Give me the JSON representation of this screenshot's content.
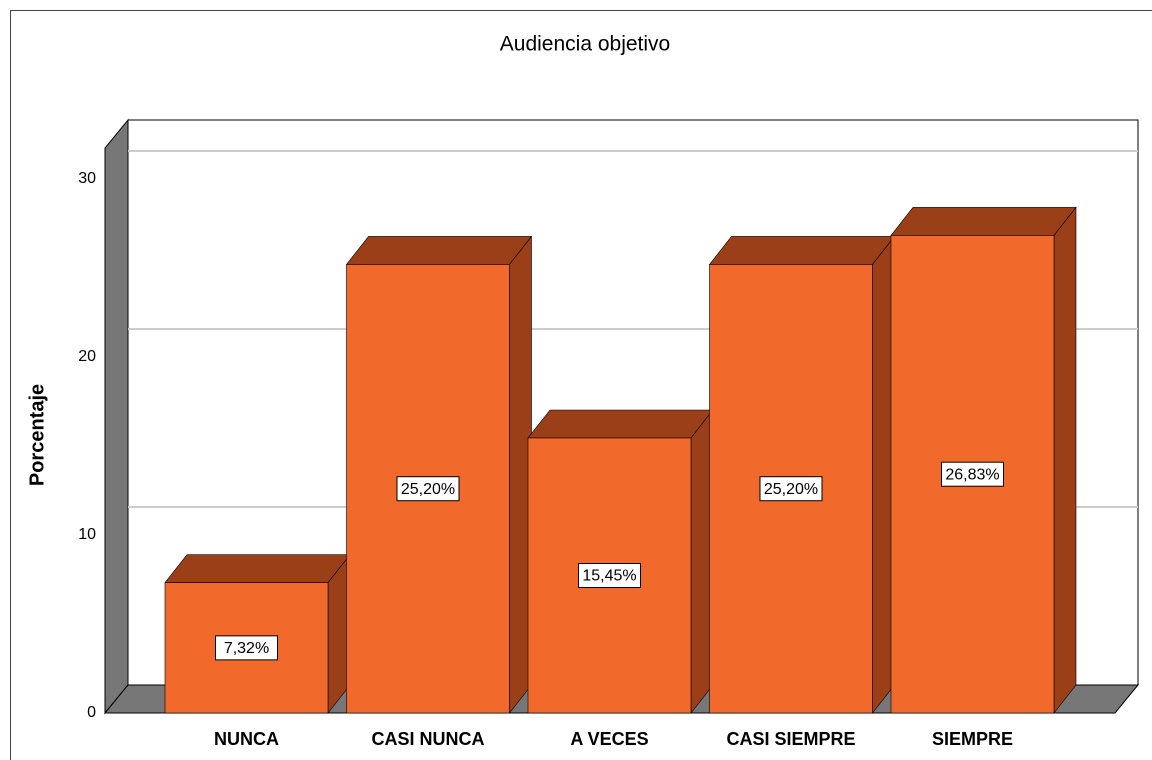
{
  "chart_data": {
    "type": "bar",
    "title": "Audiencia objetivo",
    "y_label": "Porcentaje",
    "categories": [
      "NUNCA",
      "CASI NUNCA",
      "A VECES",
      "CASI SIEMPRE",
      "SIEMPRE"
    ],
    "values": [
      7.32,
      25.2,
      15.45,
      25.2,
      26.83
    ],
    "value_labels": [
      "7,32%",
      "25,20%",
      "15,45%",
      "25,20%",
      "26,83%"
    ],
    "color": "#f26a2b",
    "ylim": [
      0,
      30
    ],
    "yticks": [
      0,
      10,
      20,
      30
    ],
    "grid": true
  }
}
